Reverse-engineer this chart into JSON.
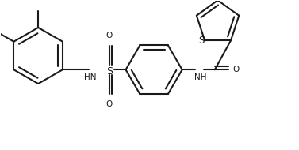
{
  "background_color": "#ffffff",
  "line_color": "#1a1a1a",
  "s_color": "#8b6914",
  "line_width": 1.5,
  "figsize": [
    3.77,
    1.9
  ],
  "dpi": 100,
  "font_size": 7.5,
  "xlim": [
    0.0,
    1.0
  ],
  "ylim": [
    0.0,
    1.0
  ]
}
